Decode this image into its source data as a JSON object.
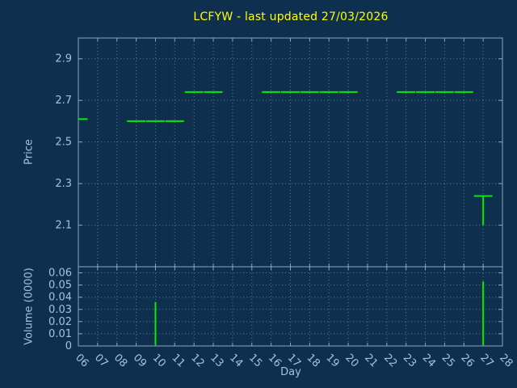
{
  "title": "LCFYW - last updated 27/03/2026",
  "xlabel": "Day",
  "colors": {
    "background": "#0e2f4e",
    "title": "#ffff00",
    "axis_text": "#a4c2e4",
    "border": "#8fa6bc",
    "grid": "#b4c5d6",
    "series": "#00ee00"
  },
  "chart_data": [
    {
      "type": "scatter",
      "name": "price-panel",
      "marker": "dash",
      "ylabel": "Price",
      "xlabel": "Day",
      "xlim": [
        6,
        28
      ],
      "ylim": [
        1.9,
        3.0
      ],
      "yticks": [
        "2.1",
        "2.3",
        "2.5",
        "2.7",
        "2.9"
      ],
      "xticks": [
        "06",
        "07",
        "08",
        "09",
        "10",
        "11",
        "12",
        "13",
        "14",
        "15",
        "16",
        "17",
        "18",
        "19",
        "20",
        "21",
        "22",
        "23",
        "24",
        "25",
        "26",
        "27",
        "28"
      ],
      "grid": true,
      "points": [
        {
          "day": 6,
          "price": 2.61
        },
        {
          "day": 9,
          "price": 2.6
        },
        {
          "day": 10,
          "price": 2.6
        },
        {
          "day": 11,
          "price": 2.6
        },
        {
          "day": 12,
          "price": 2.74
        },
        {
          "day": 13,
          "price": 2.74
        },
        {
          "day": 16,
          "price": 2.74
        },
        {
          "day": 17,
          "price": 2.74
        },
        {
          "day": 18,
          "price": 2.74
        },
        {
          "day": 19,
          "price": 2.74
        },
        {
          "day": 20,
          "price": 2.74
        },
        {
          "day": 23,
          "price": 2.74
        },
        {
          "day": 24,
          "price": 2.74
        },
        {
          "day": 25,
          "price": 2.74
        },
        {
          "day": 26,
          "price": 2.74
        }
      ],
      "hilo": {
        "day": 27,
        "high": 2.24,
        "low": 2.1,
        "close": 2.24
      }
    },
    {
      "type": "bar",
      "name": "volume-panel",
      "ylabel": "Volume (0000)",
      "xlim": [
        6,
        28
      ],
      "ylim": [
        0,
        0.065
      ],
      "yticks": [
        "0",
        "0.01",
        "0.02",
        "0.03",
        "0.04",
        "0.05",
        "0.06"
      ],
      "grid": true,
      "bars": [
        {
          "day": 10,
          "value": 0.036
        },
        {
          "day": 27,
          "value": 0.053
        }
      ]
    }
  ]
}
